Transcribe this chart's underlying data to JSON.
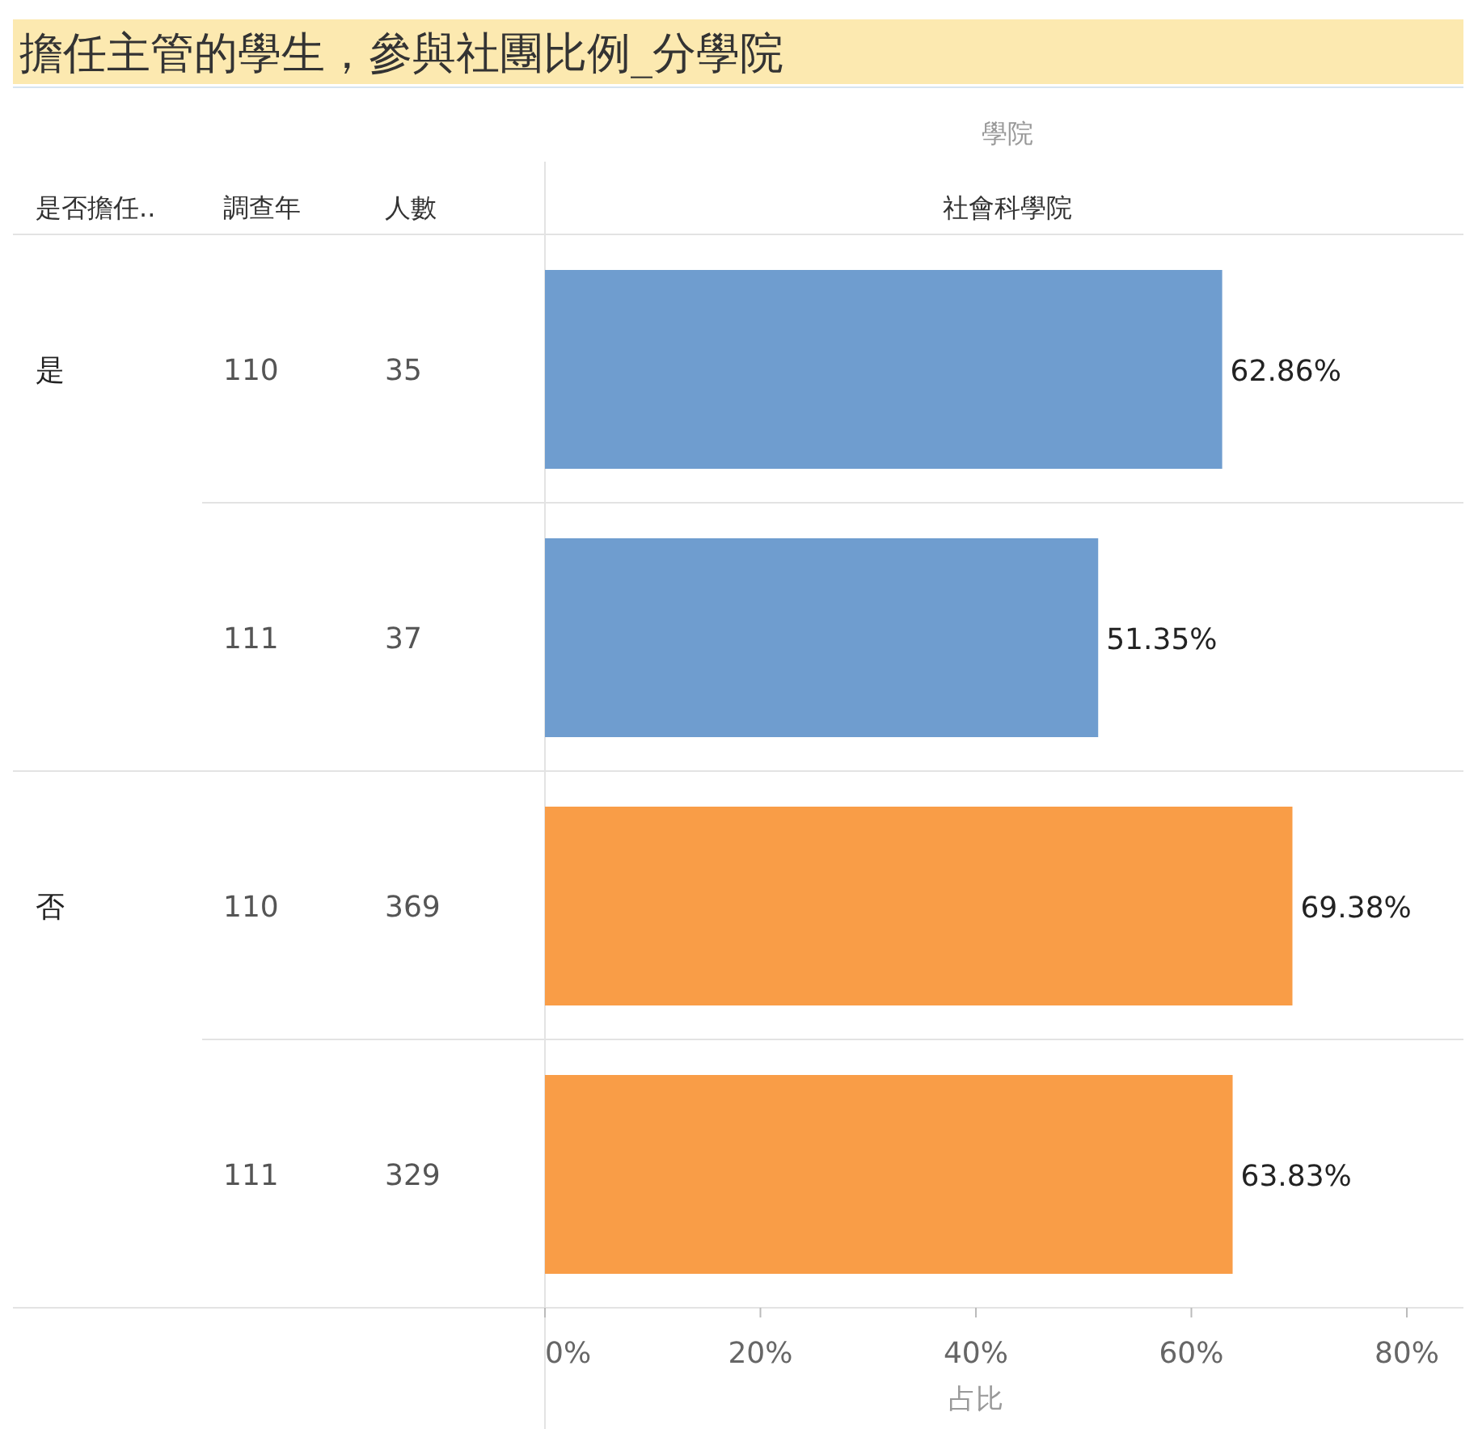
{
  "chart_data": {
    "type": "bar",
    "orientation": "horizontal",
    "title": "擔任主管的學生，參與社團比例_分學院",
    "xlabel": "占比",
    "categories": [
      "35",
      "37",
      "369",
      "329"
    ],
    "values": [
      62.86,
      51.35,
      69.38,
      63.83
    ],
    "colors": [
      "#6f9dcf",
      "#6f9dcf",
      "#f99d47",
      "#f99d47"
    ],
    "value_labels": [
      "62.86%",
      "51.35%",
      "69.38%",
      "63.83%"
    ],
    "xlim": [
      0,
      80
    ],
    "xticks": [
      {
        "value": 0,
        "label": "0%"
      },
      {
        "value": 20,
        "label": "20%"
      },
      {
        "value": 40,
        "label": "40%"
      },
      {
        "value": 60,
        "label": "60%"
      },
      {
        "value": 80,
        "label": "80%"
      }
    ],
    "annotations": [
      "學院",
      "社會科學院",
      "是否擔任..",
      "調查年",
      "人數",
      "110",
      "111",
      "110",
      "111",
      "是",
      "否"
    ]
  }
}
